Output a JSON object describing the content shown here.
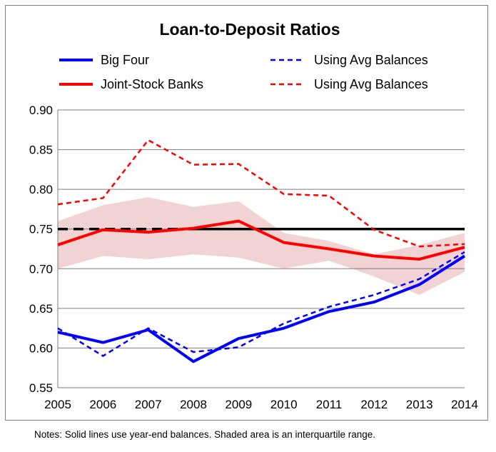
{
  "chart_data": {
    "type": "line",
    "title": "Loan-to-Deposit Ratios",
    "xlabel": "",
    "ylabel": "",
    "x": [
      "2005",
      "2006",
      "2007",
      "2008",
      "2009",
      "2010",
      "2011",
      "2012",
      "2013",
      "2014"
    ],
    "ylim": [
      0.55,
      0.9
    ],
    "yticks": [
      "0.55",
      "0.60",
      "0.65",
      "0.70",
      "0.75",
      "0.80",
      "0.85",
      "0.90"
    ],
    "grid": "horizontal",
    "legend_placement": "top",
    "series": [
      {
        "name": "Big Four",
        "style": "solid",
        "color": "#0000ff",
        "values": [
          0.62,
          0.607,
          0.623,
          0.583,
          0.612,
          0.625,
          0.646,
          0.658,
          0.68,
          0.716
        ]
      },
      {
        "name": "Using Avg Balances",
        "style": "dashed",
        "color": "#0000ff",
        "values": [
          0.625,
          0.59,
          0.625,
          0.595,
          0.601,
          0.631,
          0.652,
          0.667,
          0.687,
          0.721
        ]
      },
      {
        "name": "Joint-Stock Banks",
        "style": "solid",
        "color": "#ff0000",
        "values": [
          0.73,
          0.749,
          0.746,
          0.751,
          0.76,
          0.733,
          0.725,
          0.716,
          0.712,
          0.727
        ]
      },
      {
        "name": "Using Avg Balances",
        "style": "dashed",
        "color": "#ff0000",
        "values": [
          0.781,
          0.789,
          0.862,
          0.831,
          0.832,
          0.794,
          0.792,
          0.749,
          0.728,
          0.731
        ]
      }
    ],
    "interquartile_band": {
      "color": "#f2d3d3",
      "lower": [
        0.7,
        0.716,
        0.712,
        0.718,
        0.714,
        0.7,
        0.71,
        0.69,
        0.667,
        0.696
      ],
      "upper": [
        0.76,
        0.78,
        0.79,
        0.778,
        0.785,
        0.745,
        0.735,
        0.718,
        0.73,
        0.745
      ]
    },
    "reference_line": {
      "value": 0.75,
      "color": "#000000",
      "dashed_until": "2008",
      "solid_from": "2009"
    }
  },
  "note": "Notes: Solid lines use year-end balances. Shaded area is an interquartile range."
}
